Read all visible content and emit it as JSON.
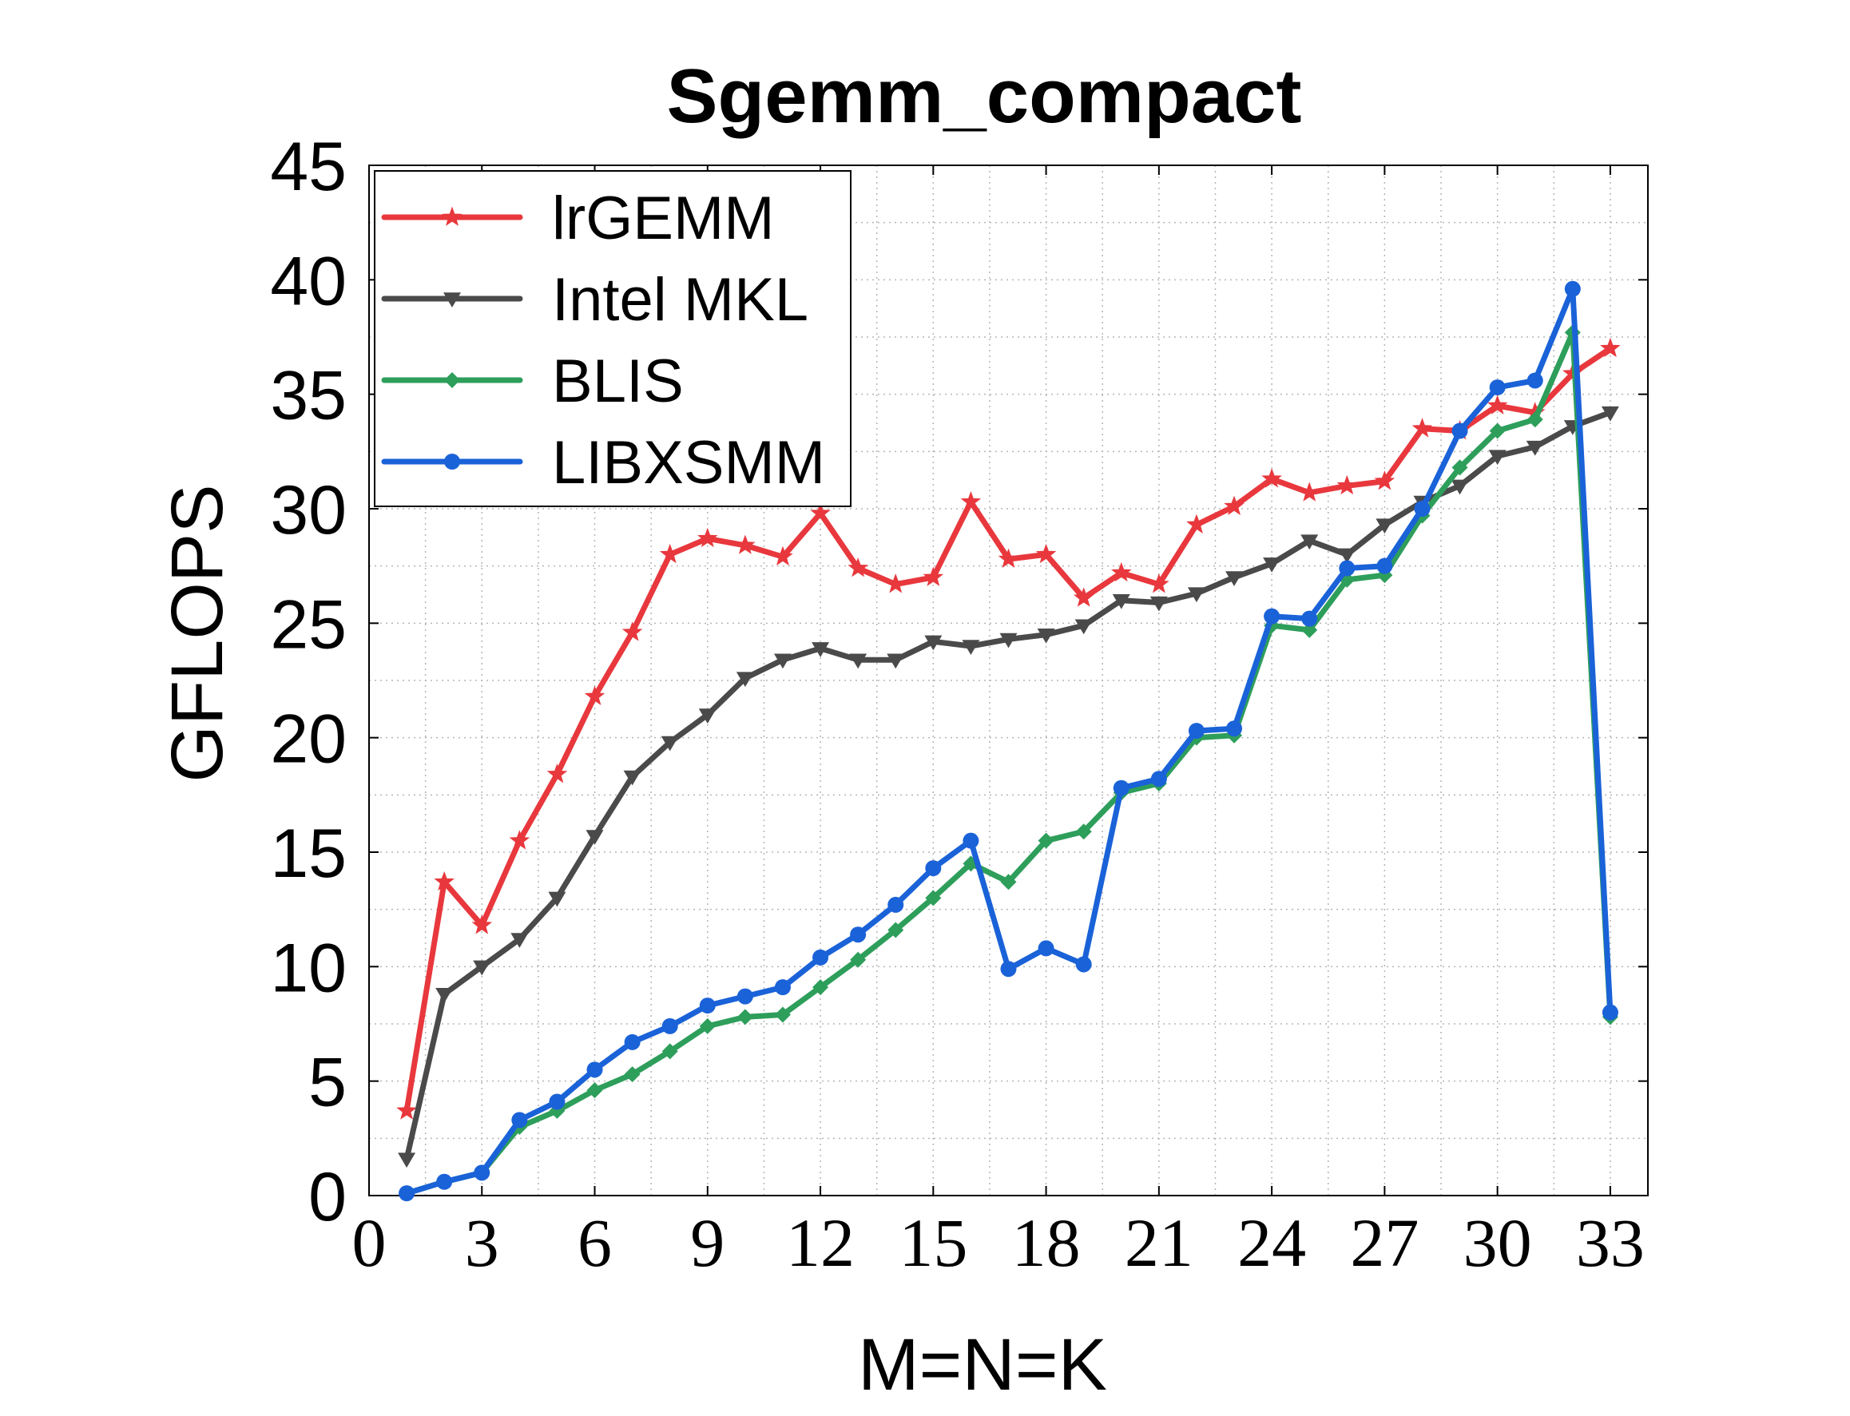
{
  "chart_data": {
    "type": "line",
    "title": "Sgemm_compact",
    "xlabel": "M=N=K",
    "ylabel": "GFLOPS",
    "xlim": [
      0,
      34
    ],
    "ylim": [
      0,
      45
    ],
    "xticks": [
      "0",
      "3",
      "6",
      "9",
      "12",
      "15",
      "18",
      "21",
      "24",
      "27",
      "30",
      "33"
    ],
    "yticks": [
      "0",
      "5",
      "10",
      "15",
      "20",
      "25",
      "30",
      "35",
      "40",
      "45"
    ],
    "grid": true,
    "legend_position": "top-left",
    "x": [
      1,
      2,
      3,
      4,
      5,
      6,
      7,
      8,
      9,
      10,
      11,
      12,
      13,
      14,
      15,
      16,
      17,
      18,
      19,
      20,
      21,
      22,
      23,
      24,
      25,
      26,
      27,
      28,
      29,
      30,
      31,
      32,
      33
    ],
    "series": [
      {
        "name": "lrGEMM",
        "color": "#e8383d",
        "marker": "star",
        "values": [
          3.7,
          13.7,
          11.8,
          15.5,
          18.4,
          21.8,
          24.6,
          28.0,
          28.7,
          28.4,
          27.9,
          29.8,
          27.4,
          26.7,
          27.0,
          30.3,
          27.8,
          28.0,
          26.1,
          27.2,
          26.7,
          29.3,
          30.1,
          31.3,
          30.7,
          31.0,
          31.2,
          33.5,
          33.4,
          34.5,
          34.2,
          35.9,
          37.0
        ]
      },
      {
        "name": "Intel MKL",
        "color": "#4a4a4a",
        "marker": "triangle-down",
        "values": [
          1.6,
          8.8,
          10.0,
          11.2,
          13.0,
          15.7,
          18.3,
          19.8,
          21.0,
          22.6,
          23.4,
          23.9,
          23.4,
          23.4,
          24.2,
          24.0,
          24.3,
          24.5,
          24.9,
          26.0,
          25.9,
          26.3,
          27.0,
          27.6,
          28.6,
          28.0,
          29.3,
          30.3,
          31.0,
          32.3,
          32.7,
          33.6,
          34.2
        ]
      },
      {
        "name": "BLIS",
        "color": "#2e9e5b",
        "marker": "diamond",
        "values": [
          0.1,
          0.6,
          1.0,
          3.0,
          3.7,
          4.6,
          5.3,
          6.3,
          7.4,
          7.8,
          7.9,
          9.1,
          10.3,
          11.6,
          13.0,
          14.5,
          13.7,
          15.5,
          15.9,
          17.6,
          18.0,
          20.0,
          20.1,
          24.9,
          24.7,
          26.9,
          27.1,
          29.7,
          31.8,
          33.4,
          33.9,
          37.7,
          7.8
        ]
      },
      {
        "name": "LIBXSMM",
        "color": "#1a62d8",
        "marker": "circle",
        "values": [
          0.1,
          0.6,
          1.0,
          3.3,
          4.1,
          5.5,
          6.7,
          7.4,
          8.3,
          8.7,
          9.1,
          10.4,
          11.4,
          12.7,
          14.3,
          15.5,
          9.9,
          10.8,
          10.1,
          17.8,
          18.2,
          20.3,
          20.4,
          25.3,
          25.2,
          27.4,
          27.5,
          30.0,
          33.4,
          35.3,
          35.6,
          39.6,
          8.0
        ]
      }
    ]
  }
}
